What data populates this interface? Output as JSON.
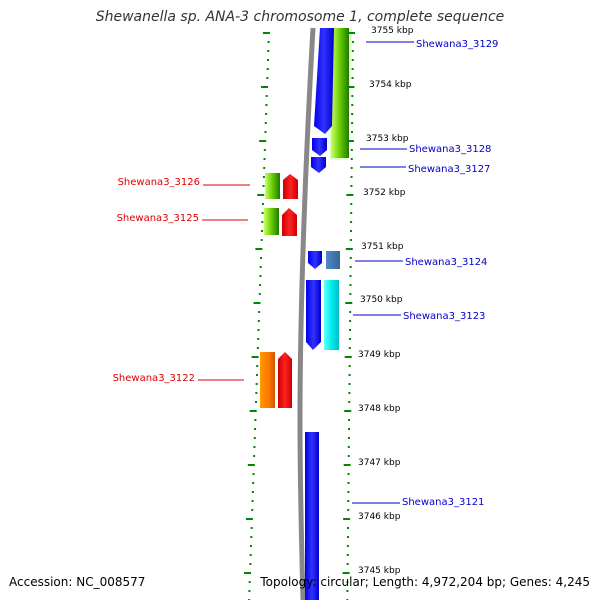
{
  "title": "Shewanella sp. ANA-3 chromosome 1, complete sequence",
  "footer": {
    "accession": "Accession: NC_008577",
    "summary": "Topology: circular; Length: 4,972,204 bp; Genes: 4,245"
  },
  "scale_labels": [
    "3755 kbp",
    "3754 kbp",
    "3753 kbp",
    "3752 kbp",
    "3751 kbp",
    "3750 kbp",
    "3749 kbp",
    "3748 kbp",
    "3747 kbp",
    "3746 kbp",
    "3745 kbp"
  ],
  "genes": [
    {
      "name": "Shewana3_3129",
      "color": "#0000cc"
    },
    {
      "name": "Shewana3_3128",
      "color": "#0000cc"
    },
    {
      "name": "Shewana3_3127",
      "color": "#0000cc"
    },
    {
      "name": "Shewana3_3126",
      "color": "#dd0000"
    },
    {
      "name": "Shewana3_3125",
      "color": "#dd0000"
    },
    {
      "name": "Shewana3_3124",
      "color": "#0000cc"
    },
    {
      "name": "Shewana3_3123",
      "color": "#0000cc"
    },
    {
      "name": "Shewana3_3122",
      "color": "#dd0000"
    },
    {
      "name": "Shewana3_3121",
      "color": "#0000cc"
    }
  ],
  "colors": {
    "forward_cds": "#0000ff",
    "reverse_cds": "#ff0000",
    "gc_skew": "#22aa22",
    "backbone": "#888888",
    "ticks": "#008800"
  }
}
